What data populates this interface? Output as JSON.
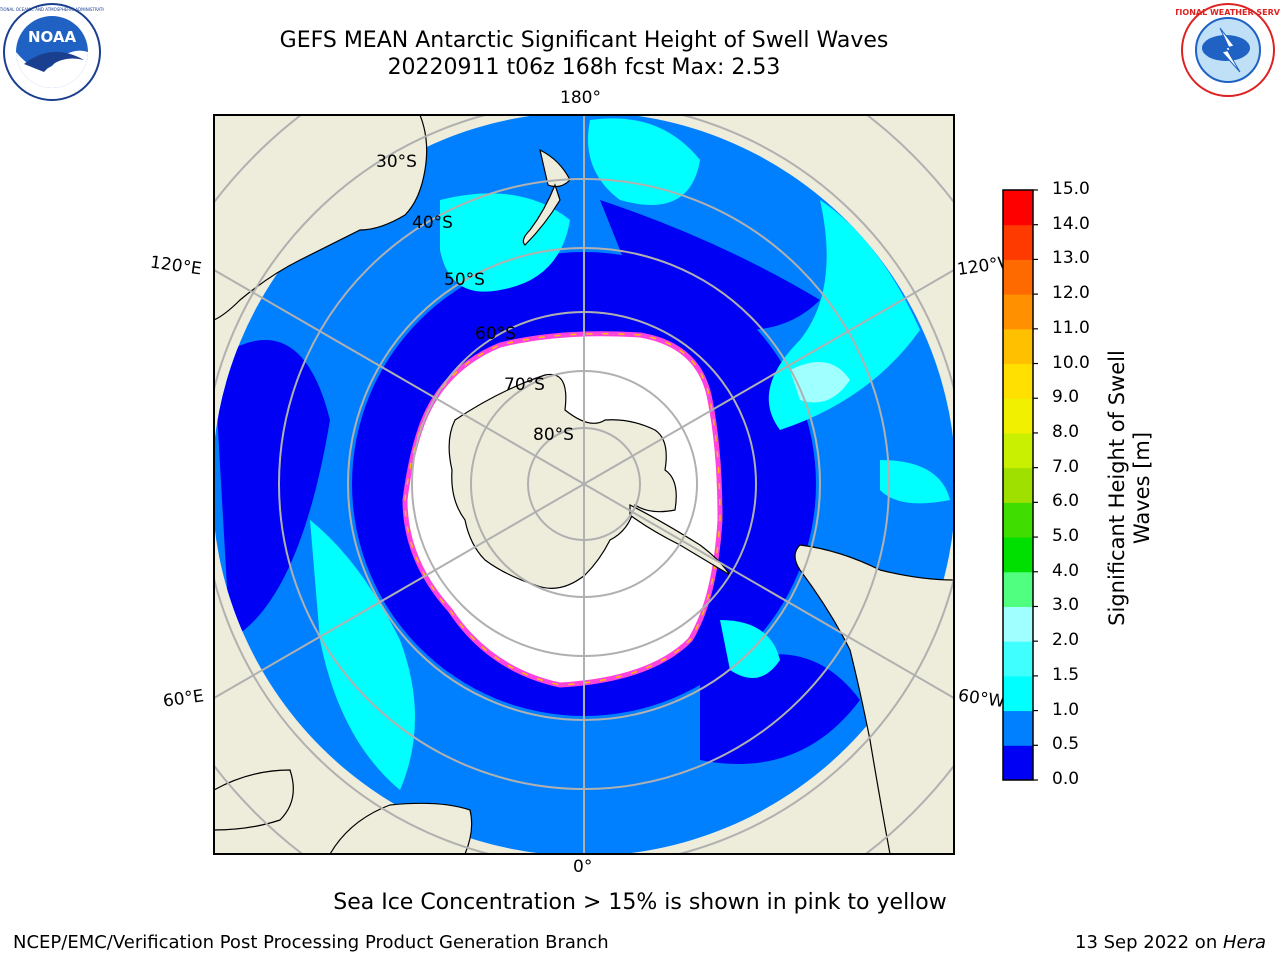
{
  "header": {
    "title_line1": "GEFS MEAN Antarctic Significant Height of Swell Waves",
    "title_line2": "20220911 t06z 168h fcst   Max: 2.53"
  },
  "logos": {
    "left": {
      "icon": "noaa-logo",
      "text": "NOAA",
      "ring_text": "NATIONAL OCEANIC AND ATMOSPHERIC ADMINISTRATION · U.S. DEPARTMENT OF COMMERCE"
    },
    "right": {
      "icon": "nws-logo",
      "ring_text": "NATIONAL WEATHER SERVICE"
    }
  },
  "map": {
    "projection": "south polar stereographic",
    "longitude_labels": {
      "top": "180°",
      "bottom": "0°",
      "upper_left": "120°E",
      "upper_right": "120°W",
      "lower_left": "60°E",
      "lower_right": "60°W"
    },
    "latitude_labels": [
      "30°S",
      "40°S",
      "50°S",
      "60°S",
      "70°S",
      "80°S"
    ],
    "colors": {
      "land": "#eeecdb",
      "ocean_dark": "#0000f5",
      "ocean_mid": "#0080ff",
      "ocean_light": "#00ffff",
      "ice": "#ffffff",
      "ice_edge": "#ff44dd",
      "grid": "#b0b0b0"
    }
  },
  "colorbar": {
    "label": "Significant Height of Swell Waves [m]",
    "levels": [
      "0.0",
      "0.5",
      "1.0",
      "1.5",
      "2.0",
      "3.0",
      "4.0",
      "5.0",
      "6.0",
      "7.0",
      "8.0",
      "9.0",
      "10.0",
      "11.0",
      "12.0",
      "13.0",
      "14.0",
      "15.0"
    ],
    "colors": [
      "#0000f5",
      "#0080ff",
      "#00ffff",
      "#40ffff",
      "#a0ffff",
      "#50ff80",
      "#00e000",
      "#40dd00",
      "#a0e000",
      "#c8f000",
      "#f0f000",
      "#ffe000",
      "#ffc000",
      "#ff9000",
      "#ff6a00",
      "#ff3a00",
      "#ff0000"
    ]
  },
  "caption": "Sea Ice Concentration > 15% is shown in pink to yellow",
  "footer": {
    "left": "NCEP/EMC/Verification Post Processing Product Generation Branch",
    "right_date": "13 Sep 2022 on ",
    "right_host": "Hera"
  }
}
